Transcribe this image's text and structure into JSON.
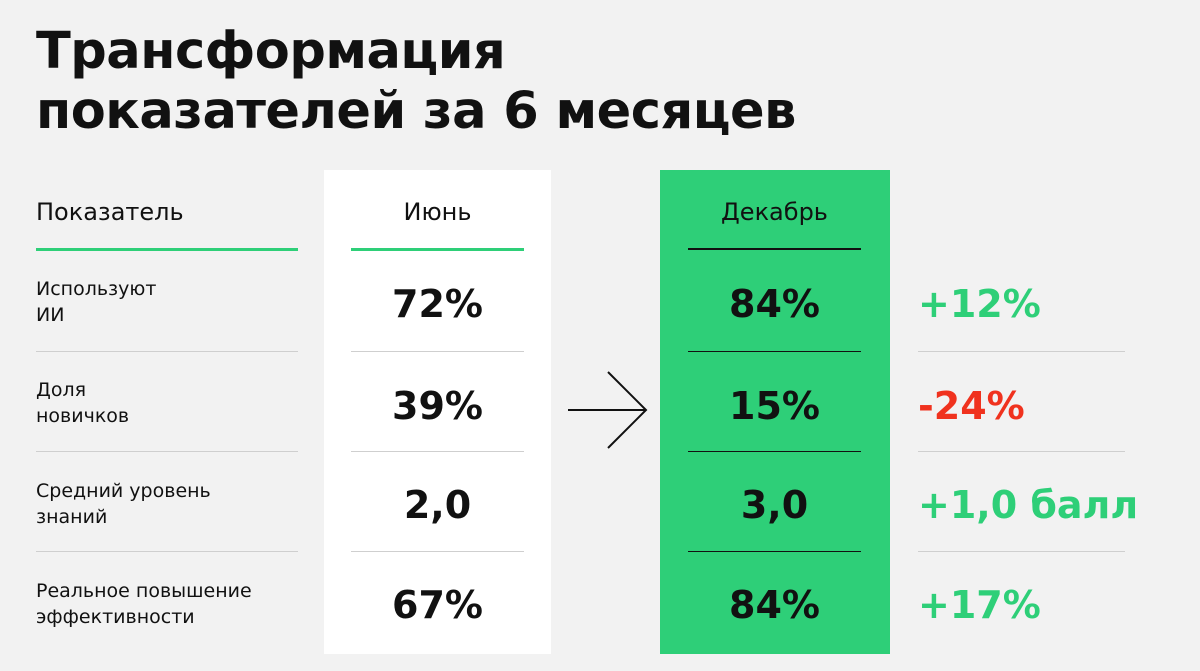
{
  "title": {
    "line1": "Трансформация",
    "line2": "показателей за 6 месяцев"
  },
  "headers": {
    "label": "Показатель",
    "june": "Июнь",
    "december": "Декабрь"
  },
  "rows": [
    {
      "label_line1": "Используют",
      "label_line2": "ИИ",
      "june": "72%",
      "december": "84%",
      "delta": "+12%",
      "trend": "positive"
    },
    {
      "label_line1": "Доля",
      "label_line2": "новичков",
      "june": "39%",
      "december": "15%",
      "delta": "-24%",
      "trend": "negative"
    },
    {
      "label_line1": "Средний уровень",
      "label_line2": "знаний",
      "june": "2,0",
      "december": "3,0",
      "delta": "+1,0 балл",
      "trend": "positive"
    },
    {
      "label_line1": "Реальное повышение",
      "label_line2": "эффективности",
      "june": "67%",
      "december": "84%",
      "delta": "+17%",
      "trend": "positive"
    }
  ],
  "colors": {
    "accent_green": "#2ecf78",
    "negative_red": "#f0321e",
    "background": "#f2f2f2"
  },
  "icons": {
    "arrow": "arrow-right-icon"
  }
}
